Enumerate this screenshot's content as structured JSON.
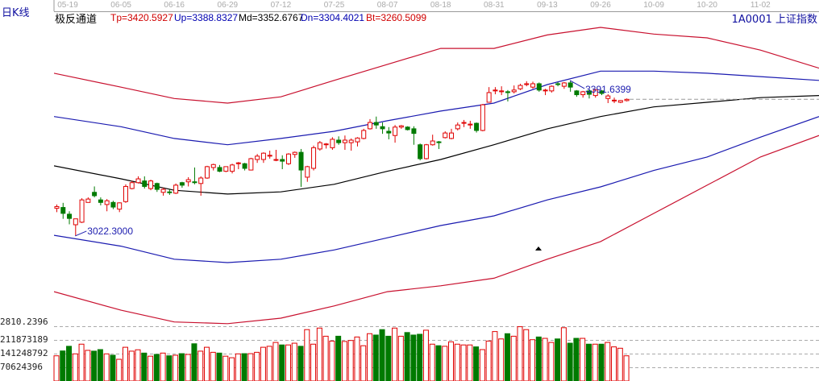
{
  "header": {
    "period": "日K线",
    "indicator_name": "极反通道",
    "values": [
      {
        "label": "Tp=3420.5927",
        "color": "#d00000"
      },
      {
        "label": "Up=3388.8327",
        "color": "#0000b0"
      },
      {
        "label": "Md=3352.6767",
        "color": "#000000"
      },
      {
        "label": "Dn=3304.4021",
        "color": "#0000b0"
      },
      {
        "label": "Bt=3260.5099",
        "color": "#d00000"
      }
    ],
    "symbol": "1A0001  上证指数"
  },
  "colors": {
    "up": "#e00000",
    "down": "#007a00",
    "top_band": "#c8102e",
    "upper_band": "#1a1ab0",
    "mid_band": "#000000",
    "lower_band": "#1a1ab0",
    "bottom_band": "#c8102e",
    "grid": "#aaaaaa"
  },
  "chart_data": {
    "type": "candlestick",
    "x_ticks": [
      "05-19",
      "06-05",
      "06-16",
      "06-29",
      "07-12",
      "07-25",
      "08-07",
      "08-18",
      "08-31",
      "09-13",
      "09-26",
      "10-09",
      "10-20",
      "11-02"
    ],
    "price_axis_label": "2810.2396",
    "price_min_label": 2810.2396,
    "high_label": "3391.6399",
    "low_label": "3022.3000",
    "last_price_line": true,
    "candles": [
      [
        3088,
        3092,
        3097,
        3079
      ],
      [
        3090,
        3076,
        3101,
        3063
      ],
      [
        3074,
        3064,
        3081,
        3050
      ],
      [
        3049,
        3063,
        3063,
        3022.3
      ],
      [
        3055,
        3108,
        3112,
        3053
      ],
      [
        3102,
        3110,
        3114,
        3102
      ],
      [
        3126,
        3118,
        3140,
        3114
      ],
      [
        3108,
        3102,
        3114,
        3095
      ],
      [
        3097,
        3106,
        3110,
        3081
      ],
      [
        3102,
        3091,
        3106,
        3086
      ],
      [
        3086,
        3101,
        3102,
        3079
      ],
      [
        3104,
        3140,
        3145,
        3101
      ],
      [
        3135,
        3149,
        3153,
        3133
      ],
      [
        3149,
        3158,
        3164,
        3147
      ],
      [
        3153,
        3140,
        3164,
        3135
      ],
      [
        3135,
        3153,
        3156,
        3131
      ],
      [
        3147,
        3133,
        3149,
        3127
      ],
      [
        3126,
        3133,
        3137,
        3118
      ],
      [
        3127,
        3126,
        3133,
        3120
      ],
      [
        3124,
        3143,
        3147,
        3122
      ],
      [
        3149,
        3143,
        3151,
        3137
      ],
      [
        3151,
        3156,
        3162,
        3140
      ],
      [
        3151,
        3149,
        3185,
        3145
      ],
      [
        3147,
        3160,
        3164,
        3118
      ],
      [
        3160,
        3187,
        3189,
        3158
      ],
      [
        3185,
        3192,
        3194,
        3178
      ],
      [
        3185,
        3176,
        3191,
        3174
      ],
      [
        3176,
        3187,
        3187,
        3174
      ],
      [
        3176,
        3191,
        3194,
        3171
      ],
      [
        3194,
        3196,
        3198,
        3181
      ],
      [
        3194,
        3183,
        3196,
        3178
      ],
      [
        3179,
        3206,
        3208,
        3178
      ],
      [
        3204,
        3212,
        3217,
        3196
      ],
      [
        3204,
        3219,
        3221,
        3196
      ],
      [
        3212,
        3214,
        3225,
        3206
      ],
      [
        3202,
        3204,
        3227,
        3200
      ],
      [
        3204,
        3200,
        3214,
        3181
      ],
      [
        3194,
        3217,
        3219,
        3191
      ],
      [
        3216,
        3221,
        3223,
        3208
      ],
      [
        3221,
        3179,
        3229,
        3139
      ],
      [
        3162,
        3187,
        3189,
        3151
      ],
      [
        3183,
        3232,
        3237,
        3178
      ],
      [
        3229,
        3244,
        3248,
        3225
      ],
      [
        3239,
        3241,
        3243,
        3230
      ],
      [
        3232,
        3252,
        3257,
        3227
      ],
      [
        3250,
        3244,
        3259,
        3239
      ],
      [
        3244,
        3250,
        3261,
        3227
      ],
      [
        3244,
        3250,
        3254,
        3225
      ],
      [
        3246,
        3255,
        3257,
        3235
      ],
      [
        3254,
        3273,
        3277,
        3252
      ],
      [
        3277,
        3292,
        3300,
        3275
      ],
      [
        3292,
        3286,
        3306,
        3277
      ],
      [
        3282,
        3277,
        3292,
        3265
      ],
      [
        3271,
        3267,
        3281,
        3252
      ],
      [
        3261,
        3281,
        3286,
        3244
      ],
      [
        3281,
        3284,
        3286,
        3277
      ],
      [
        3281,
        3275,
        3283,
        3273
      ],
      [
        3277,
        3266,
        3283,
        3239
      ],
      [
        3239,
        3206,
        3242,
        3202
      ],
      [
        3206,
        3239,
        3241,
        3204
      ],
      [
        3239,
        3248,
        3263,
        3237
      ],
      [
        3246,
        3244,
        3248,
        3229
      ],
      [
        3256,
        3267,
        3271,
        3254
      ],
      [
        3254,
        3267,
        3277,
        3252
      ],
      [
        3277,
        3286,
        3292,
        3273
      ],
      [
        3290,
        3292,
        3298,
        3281
      ],
      [
        3286,
        3288,
        3296,
        3277
      ],
      [
        3290,
        3273,
        3292,
        3268
      ],
      [
        3273,
        3334,
        3336,
        3271
      ],
      [
        3340,
        3363,
        3376,
        3340
      ],
      [
        3367,
        3369,
        3376,
        3359
      ],
      [
        3365,
        3367,
        3378,
        3357
      ],
      [
        3365,
        3363,
        3369,
        3342
      ],
      [
        3365,
        3369,
        3380,
        3361
      ],
      [
        3372,
        3380,
        3384,
        3369
      ],
      [
        3382,
        3384,
        3390,
        3378
      ],
      [
        3376,
        3384,
        3389,
        3372
      ],
      [
        3384,
        3369,
        3387,
        3365
      ],
      [
        3367,
        3369,
        3372,
        3357
      ],
      [
        3367,
        3378,
        3380,
        3363
      ],
      [
        3384,
        3383,
        3388,
        3378
      ],
      [
        3378,
        3386,
        3388,
        3372
      ],
      [
        3386,
        3376,
        3391.64,
        3365
      ],
      [
        3367,
        3358,
        3369,
        3353
      ],
      [
        3358,
        3365,
        3367,
        3351
      ],
      [
        3367,
        3359,
        3370,
        3349
      ],
      [
        3356,
        3369,
        3372,
        3351
      ],
      [
        3367,
        3361,
        3369,
        3357
      ],
      [
        3349,
        3355,
        3359,
        3338
      ],
      [
        3345,
        3345,
        3351,
        3338
      ],
      [
        3340,
        3344,
        3345,
        3338
      ],
      [
        3344,
        3347,
        3349,
        3342
      ]
    ],
    "bands_at_ticks_and_right_edge": {
      "top": [
        3409,
        3376,
        3349,
        3338,
        3353,
        3392,
        3430,
        3468,
        3468,
        3500,
        3518,
        3502,
        3493,
        3464,
        3421
      ],
      "upper": [
        3306,
        3282,
        3254,
        3239,
        3254,
        3271,
        3296,
        3319,
        3338,
        3382,
        3414,
        3414,
        3409,
        3401,
        3392
      ],
      "middle": [
        3189,
        3158,
        3131,
        3122,
        3127,
        3145,
        3176,
        3204,
        3239,
        3277,
        3306,
        3329,
        3340,
        3351,
        3356
      ],
      "lower": [
        3024,
        2998,
        2967,
        2959,
        2967,
        2989,
        3018,
        3047,
        3070,
        3108,
        3139,
        3178,
        3210,
        3257,
        3306
      ],
      "bottom": [
        2890,
        2846,
        2818,
        2814,
        2827,
        2856,
        2890,
        2904,
        2922,
        2967,
        3009,
        3076,
        3143,
        3210,
        3261
      ]
    },
    "volume_axis_labels": [
      "211873189",
      "141248792",
      "70624396"
    ],
    "volume_ticks": [
      211873189,
      141248792,
      70624396
    ],
    "volumes": [
      130000000.0,
      155000000.0,
      179000000.0,
      140000000.0,
      190000000.0,
      158000000.0,
      154000000.0,
      162000000.0,
      140000000.0,
      133000000.0,
      112000000.0,
      174000000.0,
      154000000.0,
      161000000.0,
      144000000.0,
      128000000.0,
      137000000.0,
      144000000.0,
      130000000.0,
      133000000.0,
      141000000.0,
      137000000.0,
      192000000.0,
      154000000.0,
      174000000.0,
      148000000.0,
      144000000.0,
      128000000.0,
      120000000.0,
      140000000.0,
      141000000.0,
      141000000.0,
      148000000.0,
      174000000.0,
      179000000.0,
      199000000.0,
      186000000.0,
      186000000.0,
      195000000.0,
      179000000.0,
      265000000.0,
      190000000.0,
      273000000.0,
      231000000.0,
      206000000.0,
      231000000.0,
      204000000.0,
      209000000.0,
      227000000.0,
      182000000.0,
      244000000.0,
      237000000.0,
      265000000.0,
      231000000.0,
      273000000.0,
      231000000.0,
      250000000.0,
      237000000.0,
      241000000.0,
      262000000.0,
      190000000.0,
      182000000.0,
      179000000.0,
      202000000.0,
      190000000.0,
      186000000.0,
      186000000.0,
      176000000.0,
      162000000.0,
      206000000.0,
      255000000.0,
      217000000.0,
      244000000.0,
      231000000.0,
      280000000.0,
      265000000.0,
      213000000.0,
      227000000.0,
      220000000.0,
      199000000.0,
      217000000.0,
      275000000.0,
      195000000.0,
      220000000.0,
      220000000.0,
      190000000.0,
      190000000.0,
      190000000.0,
      199000000.0,
      176000000.0,
      169000000.0,
      130000000.0
    ]
  }
}
